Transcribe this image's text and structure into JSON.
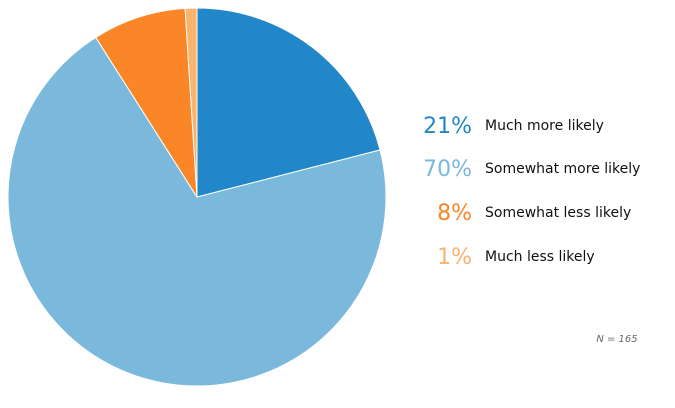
{
  "chart_data": {
    "type": "pie",
    "categories": [
      "Much more likely",
      "Somewhat more likely",
      "Somewhat less likely",
      "Much less likely"
    ],
    "values": [
      21,
      70,
      8,
      1
    ],
    "value_labels": [
      "21%",
      "70%",
      "8%",
      "1%"
    ],
    "colors": [
      "#2187c8",
      "#7ab9db",
      "#fb8628",
      "#fbb26b"
    ],
    "legend_position": "right",
    "start": "top, clockwise",
    "note": "N = 165"
  }
}
